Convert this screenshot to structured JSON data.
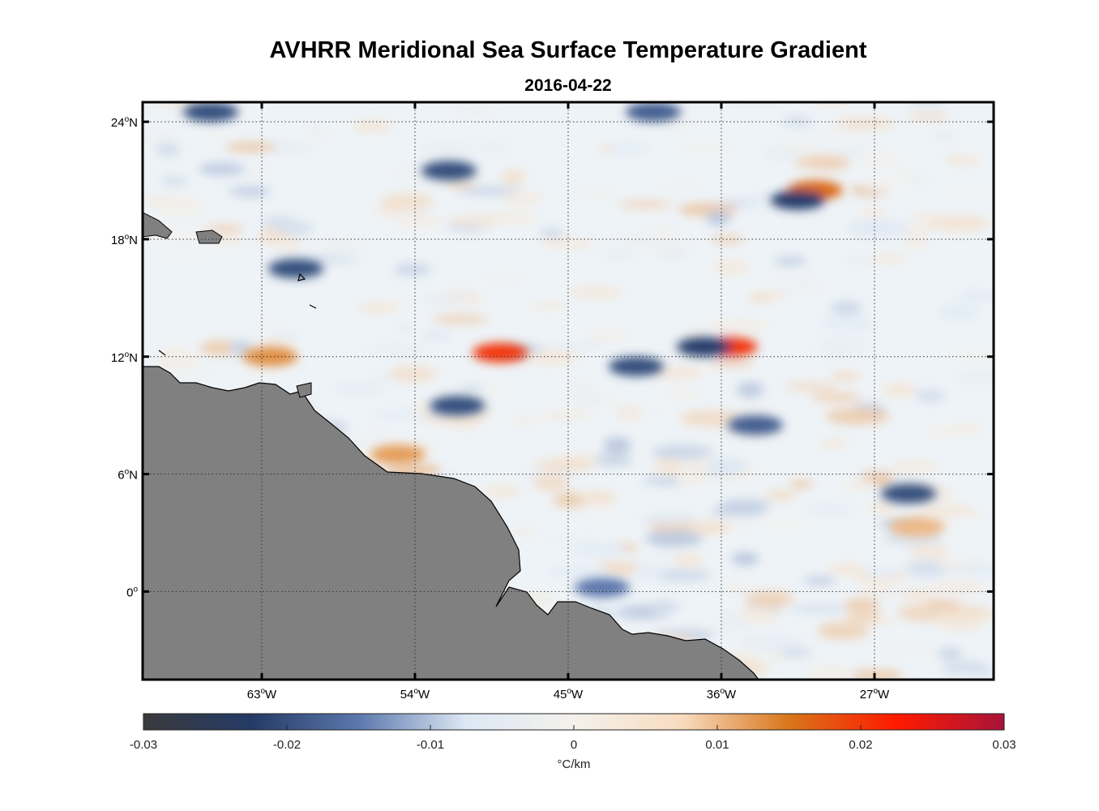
{
  "title": "AVHRR Meridional Sea Surface Temperature Gradient",
  "subtitle": "2016-04-22",
  "map": {
    "lon_range": [
      -70,
      -20
    ],
    "lat_range": [
      -4.5,
      25
    ],
    "lat_ticks": [
      {
        "deg": "24",
        "hemi": "N",
        "value": 24
      },
      {
        "deg": "18",
        "hemi": "N",
        "value": 18
      },
      {
        "deg": "12",
        "hemi": "N",
        "value": 12
      },
      {
        "deg": "6",
        "hemi": "N",
        "value": 6
      },
      {
        "deg": "0",
        "hemi": "",
        "value": 0
      }
    ],
    "lon_ticks": [
      {
        "deg": "63",
        "hemi": "W",
        "value": -63
      },
      {
        "deg": "54",
        "hemi": "W",
        "value": -54
      },
      {
        "deg": "45",
        "hemi": "W",
        "value": -45
      },
      {
        "deg": "36",
        "hemi": "W",
        "value": -36
      },
      {
        "deg": "27",
        "hemi": "W",
        "value": -27
      }
    ],
    "grid": "dotted",
    "land_color": "#808080",
    "features": [
      {
        "lon": -62.5,
        "lat": 12,
        "value": 0.013
      },
      {
        "lon": -55,
        "lat": 7,
        "value": 0.012
      },
      {
        "lon": -49,
        "lat": 12.2,
        "value": 0.02
      },
      {
        "lon": -35.5,
        "lat": 12.5,
        "value": 0.02
      },
      {
        "lon": -30.5,
        "lat": 20.5,
        "value": 0.016
      },
      {
        "lon": -24.5,
        "lat": 3.3,
        "value": 0.01
      },
      {
        "lon": -37,
        "lat": 12.5,
        "value": -0.022
      },
      {
        "lon": -31.5,
        "lat": 20,
        "value": -0.022
      },
      {
        "lon": -52,
        "lat": 21.5,
        "value": -0.02
      },
      {
        "lon": -61,
        "lat": 16.5,
        "value": -0.02
      },
      {
        "lon": -51.5,
        "lat": 9.5,
        "value": -0.02
      },
      {
        "lon": -41,
        "lat": 11.5,
        "value": -0.02
      },
      {
        "lon": -25,
        "lat": 5,
        "value": -0.02
      },
      {
        "lon": -34,
        "lat": 8.5,
        "value": -0.018
      },
      {
        "lon": -66,
        "lat": 24.5,
        "value": -0.02
      },
      {
        "lon": -40,
        "lat": 24.5,
        "value": -0.018
      },
      {
        "lon": -43,
        "lat": 0.2,
        "value": -0.015
      }
    ]
  },
  "colorbar": {
    "label": "°C/km",
    "ticks": [
      "-0.03",
      "-0.02",
      "-0.01",
      "0",
      "0.01",
      "0.02",
      "0.03"
    ],
    "range": [
      -0.03,
      0.03
    ],
    "stops": [
      "#3a3a3c",
      "#243a66",
      "#5b78ac",
      "#dde8f4",
      "#f4f1ec",
      "#f8dcc0",
      "#d8761a",
      "#ff1a00",
      "#a8133a"
    ]
  }
}
